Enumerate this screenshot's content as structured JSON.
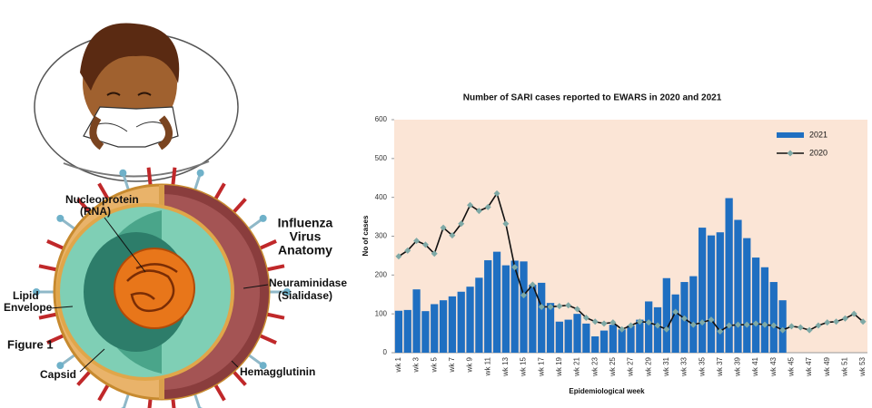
{
  "chart_data": {
    "type": "bar",
    "title": "Number of SARI cases reported to EWARS  in 2020 and 2021",
    "x_label": "Epidemiological week",
    "y_label": "No of cases",
    "categories": [
      "wk 1",
      null,
      "wk 3",
      null,
      "wk 5",
      null,
      "wk 7",
      null,
      "wk 9",
      null,
      "wk 11",
      null,
      "wk 13",
      null,
      "wk 15",
      null,
      "wk 17",
      null,
      "wk 19",
      null,
      "wk 21",
      null,
      "wk 23",
      null,
      "wk 25",
      null,
      "wk 27",
      null,
      "wk 29",
      null,
      "wk 31",
      null,
      "wk 33",
      null,
      "wk 35",
      null,
      "wk 37",
      null,
      "wk 39",
      null,
      "wk 41",
      null,
      "wk 43",
      null,
      "wk 45",
      null,
      "wk 47",
      null,
      "wk 49",
      null,
      "wk 51",
      null,
      "wk 53"
    ],
    "series": [
      {
        "name": "2021",
        "type": "bar",
        "color": "#1f6fc1",
        "values": [
          108,
          110,
          163,
          107,
          125,
          135,
          145,
          157,
          170,
          193,
          238,
          260,
          225,
          237,
          235,
          175,
          180,
          128,
          80,
          85,
          100,
          75,
          42,
          57,
          72,
          60,
          70,
          85,
          132,
          117,
          192,
          150,
          182,
          197,
          322,
          302,
          310,
          398,
          342,
          295,
          245,
          220,
          182,
          135,
          null,
          null,
          null,
          null,
          null,
          null,
          null,
          null,
          null
        ]
      },
      {
        "name": "2020",
        "type": "line",
        "color": "#111111",
        "marker_color": "#7ea9a6",
        "values": [
          248,
          263,
          288,
          278,
          255,
          322,
          302,
          332,
          380,
          365,
          375,
          410,
          332,
          220,
          148,
          175,
          118,
          118,
          120,
          122,
          112,
          90,
          80,
          75,
          78,
          60,
          70,
          80,
          78,
          70,
          60,
          105,
          88,
          72,
          78,
          85,
          55,
          70,
          72,
          72,
          75,
          72,
          70,
          58,
          68,
          65,
          58,
          70,
          78,
          80,
          88,
          100,
          80
        ]
      }
    ],
    "ylim": [
      0,
      600
    ],
    "yticks": [
      0,
      100,
      200,
      300,
      400,
      500,
      600
    ],
    "grid": false,
    "legend": "upper right",
    "background": "#fbe5d6"
  },
  "figure": {
    "label": "Figure 1",
    "title": [
      "Influenza",
      "Virus",
      "Anatomy"
    ],
    "labels": {
      "nucleoprotein": [
        "Nucleoprotein",
        "(RNA)"
      ],
      "lipid_envelope": [
        "Lipid",
        "Envelope"
      ],
      "neuraminidase": [
        "Neuraminidase",
        "(Sialidase)"
      ],
      "capsid": [
        "Capsid"
      ],
      "hemagglutinin": [
        "Hemagglutinin"
      ]
    }
  }
}
